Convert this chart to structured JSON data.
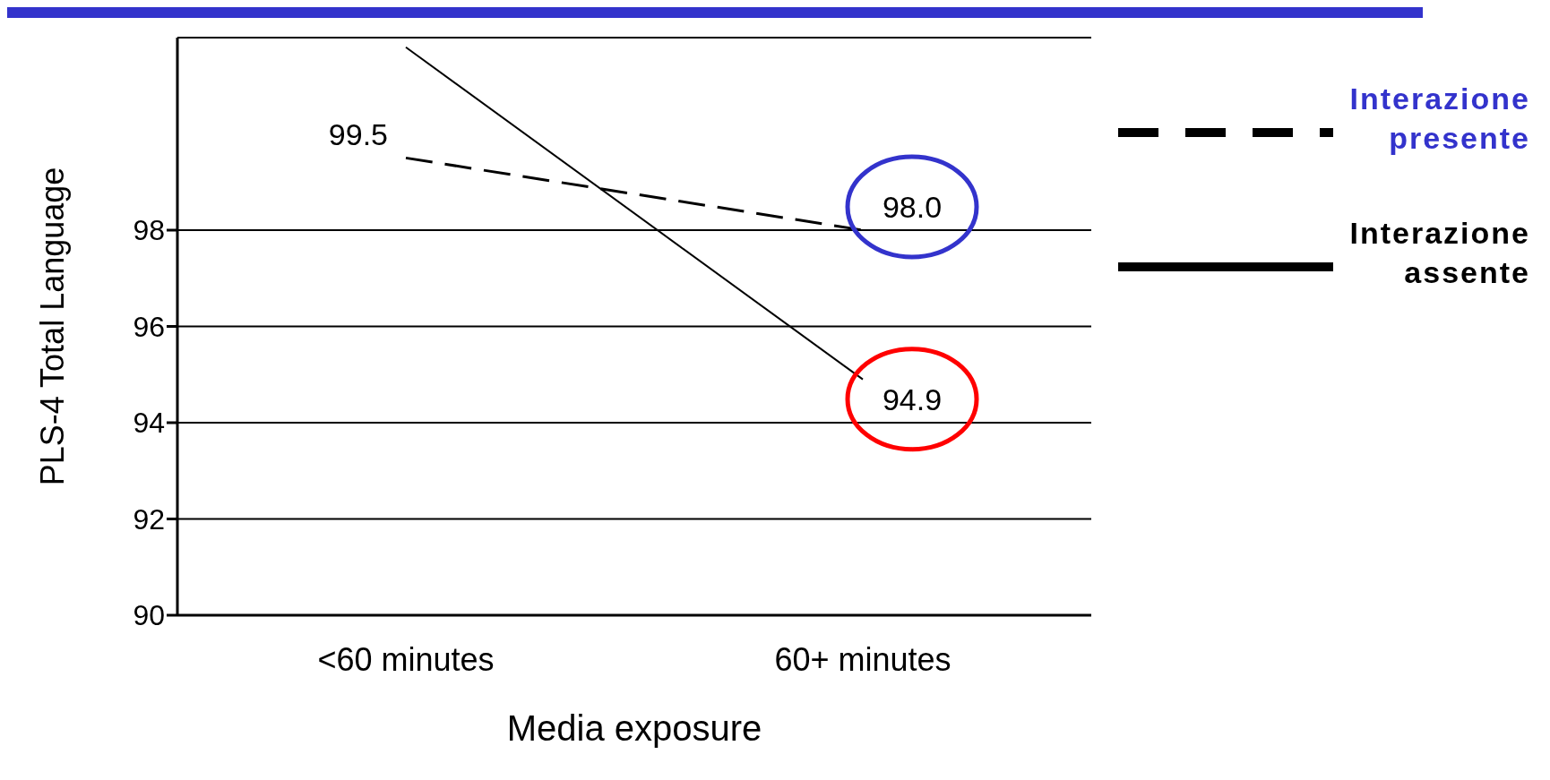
{
  "chart_data": {
    "type": "line",
    "xlabel": "Media exposure",
    "ylabel": "PLS-4 Total Language",
    "categories": [
      "<60 minutes",
      "60+ minutes"
    ],
    "series": [
      {
        "name": "Interazione presente",
        "color": "#000000",
        "line_style": "dashed",
        "values": [
          99.5,
          98.0
        ],
        "value_labels": [
          "99.5",
          "98.0"
        ]
      },
      {
        "name": "Interazione assente",
        "color": "#000000",
        "line_style": "solid",
        "values": [
          101.8,
          94.9
        ],
        "value_labels": [
          null,
          "94.9"
        ]
      }
    ],
    "ylim": [
      90,
      102
    ],
    "yticks": [
      90,
      92,
      94,
      96,
      98
    ],
    "grid": "y",
    "legend": "right",
    "marker": "none"
  }
}
